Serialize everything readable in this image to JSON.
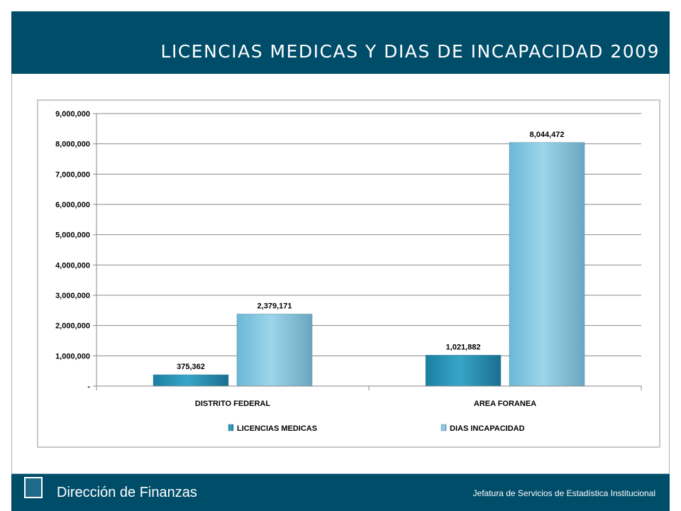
{
  "slide": {
    "title": "LICENCIAS MEDICAS Y DIAS DE INCAPACIDAD 2009",
    "footer_left": "Dirección de Finanzas",
    "footer_right": "Jefatura de Servicios de Estadística Institucional",
    "logo_icon": "issste-logo-icon"
  },
  "colors": {
    "band": "#004d6a",
    "series_dark": "#2a93b5",
    "series_light": "#8ccbe3"
  },
  "chart_data": {
    "type": "bar",
    "categories": [
      "DISTRITO FEDERAL",
      "AREA FORANEA"
    ],
    "series": [
      {
        "name": "LICENCIAS MEDICAS",
        "values": [
          375362,
          1021882
        ],
        "labels": [
          "375,362",
          "1,021,882"
        ]
      },
      {
        "name": "DIAS INCAPACIDAD",
        "values": [
          2379171,
          8044472
        ],
        "labels": [
          "2,379,171",
          "8,044,472"
        ]
      }
    ],
    "ylim": [
      0,
      9000000
    ],
    "yticks": [
      0,
      1000000,
      2000000,
      3000000,
      4000000,
      5000000,
      6000000,
      7000000,
      8000000,
      9000000
    ],
    "ytick_labels": [
      "-",
      "1,000,000",
      "2,000,000",
      "3,000,000",
      "4,000,000",
      "5,000,000",
      "6,000,000",
      "7,000,000",
      "8,000,000",
      "9,000,000"
    ],
    "grid": true,
    "legend": "bottom"
  }
}
